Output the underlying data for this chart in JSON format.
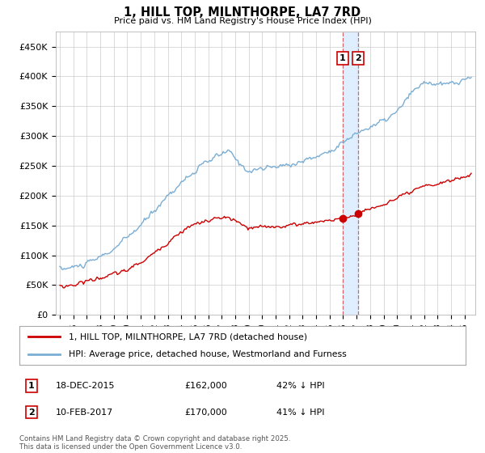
{
  "title": "1, HILL TOP, MILNTHORPE, LA7 7RD",
  "subtitle": "Price paid vs. HM Land Registry's House Price Index (HPI)",
  "ylim": [
    0,
    475000
  ],
  "yticks": [
    0,
    50000,
    100000,
    150000,
    200000,
    250000,
    300000,
    350000,
    400000,
    450000
  ],
  "ytick_labels": [
    "£0",
    "£50K",
    "£100K",
    "£150K",
    "£200K",
    "£250K",
    "£300K",
    "£350K",
    "£400K",
    "£450K"
  ],
  "sale1": {
    "date_num": 2015.96,
    "price": 162000,
    "label": "1",
    "date_str": "18-DEC-2015",
    "pct": "42% ↓ HPI"
  },
  "sale2": {
    "date_num": 2017.12,
    "price": 170000,
    "label": "2",
    "date_str": "10-FEB-2017",
    "pct": "41% ↓ HPI"
  },
  "legend_line1": "1, HILL TOP, MILNTHORPE, LA7 7RD (detached house)",
  "legend_line2": "HPI: Average price, detached house, Westmorland and Furness",
  "footnote": "Contains HM Land Registry data © Crown copyright and database right 2025.\nThis data is licensed under the Open Government Licence v3.0.",
  "line_color_red": "#cc0000",
  "line_color_blue": "#7aaed4",
  "shade_color": "#ddeeff",
  "background": "#ffffff",
  "grid_color": "#cccccc"
}
